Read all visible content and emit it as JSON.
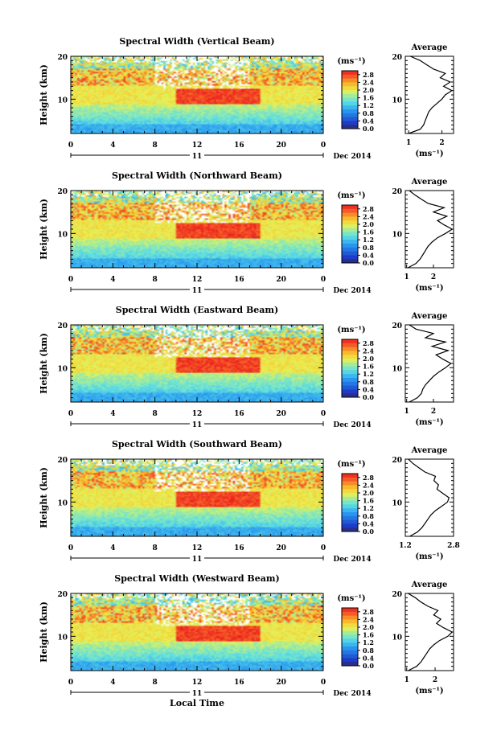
{
  "figure": {
    "xlabel": "Local Time",
    "day_label": "11",
    "month_label": "Dec 2014",
    "colorbar_unit": "(ms⁻¹)",
    "avg_title": "Average",
    "avg_xlabel": "(ms⁻¹)",
    "ylabel": "Height (km)"
  },
  "chart_data": [
    {
      "type": "heatmap",
      "title": "Spectral Width (Vertical Beam)",
      "x_ticks": [
        "0",
        "4",
        "8",
        "12",
        "16",
        "20",
        "0"
      ],
      "y_ticks": [
        "20",
        "10"
      ],
      "xlim": [
        0,
        24
      ],
      "ylim": [
        2,
        20
      ],
      "colorbar_ticks": [
        "2.8",
        "2.4",
        "2.0",
        "1.6",
        "1.2",
        "0.8",
        "0.4",
        "0.0"
      ],
      "colorbar_range": [
        0,
        3.0
      ],
      "profile": {
        "title": "Average",
        "x_ticks": [
          "1",
          "2"
        ],
        "xlim": [
          0.9,
          2.35
        ],
        "heights": [
          2,
          3,
          4,
          5,
          6,
          7,
          8,
          9,
          10,
          11,
          12,
          13,
          14,
          15,
          16,
          17,
          18,
          19,
          20
        ],
        "values": [
          1.0,
          1.35,
          1.45,
          1.5,
          1.55,
          1.6,
          1.7,
          1.85,
          2.0,
          2.1,
          2.3,
          2.05,
          2.25,
          1.95,
          2.1,
          1.75,
          1.55,
          1.35,
          1.05
        ]
      }
    },
    {
      "type": "heatmap",
      "title": "Spectral Width (Northward Beam)",
      "x_ticks": [
        "0",
        "4",
        "8",
        "12",
        "16",
        "20",
        "0"
      ],
      "y_ticks": [
        "20",
        "10"
      ],
      "xlim": [
        0,
        24
      ],
      "ylim": [
        2,
        20
      ],
      "colorbar_ticks": [
        "2.8",
        "2.4",
        "2.0",
        "1.6",
        "1.2",
        "0.8",
        "0.4",
        "0.0"
      ],
      "colorbar_range": [
        0,
        3.0
      ],
      "profile": {
        "title": "Average",
        "x_ticks": [
          "1",
          "2"
        ],
        "xlim": [
          0.95,
          2.75
        ],
        "heights": [
          2,
          3,
          4,
          5,
          6,
          7,
          8,
          9,
          10,
          11,
          12,
          13,
          14,
          15,
          16,
          17,
          18,
          19,
          20
        ],
        "values": [
          1.05,
          1.35,
          1.5,
          1.6,
          1.7,
          1.8,
          1.95,
          2.15,
          2.45,
          2.7,
          2.4,
          2.15,
          2.5,
          2.0,
          2.4,
          1.8,
          1.55,
          1.3,
          1.1
        ]
      }
    },
    {
      "type": "heatmap",
      "title": "Spectral Width (Eastward Beam)",
      "x_ticks": [
        "0",
        "4",
        "8",
        "12",
        "16",
        "20",
        "0"
      ],
      "y_ticks": [
        "20",
        "10"
      ],
      "xlim": [
        0,
        24
      ],
      "ylim": [
        2,
        20
      ],
      "colorbar_ticks": [
        "2.8",
        "2.4",
        "2.0",
        "1.6",
        "1.2",
        "0.8",
        "0.4",
        "0.0"
      ],
      "colorbar_range": [
        0,
        3.0
      ],
      "profile": {
        "title": "Average",
        "x_ticks": [
          "1",
          "2"
        ],
        "xlim": [
          0.95,
          2.75
        ],
        "heights": [
          2,
          3,
          4,
          5,
          6,
          7,
          8,
          9,
          10,
          11,
          12,
          13,
          14,
          15,
          16,
          17,
          18,
          19,
          20
        ],
        "values": [
          1.1,
          1.4,
          1.55,
          1.6,
          1.7,
          1.85,
          2.0,
          2.2,
          2.45,
          2.65,
          2.35,
          2.1,
          2.55,
          1.95,
          2.45,
          1.7,
          2.0,
          1.35,
          1.1
        ]
      }
    },
    {
      "type": "heatmap",
      "title": "Spectral Width (Southward Beam)",
      "x_ticks": [
        "0",
        "4",
        "8",
        "12",
        "16",
        "20",
        "0"
      ],
      "y_ticks": [
        "20",
        "10"
      ],
      "xlim": [
        0,
        24
      ],
      "ylim": [
        2,
        20
      ],
      "colorbar_ticks": [
        "2.8",
        "2.4",
        "2.0",
        "1.6",
        "1.2",
        "0.8",
        "0.4",
        "0.0"
      ],
      "colorbar_range": [
        0,
        3.0
      ],
      "profile": {
        "title": "Average",
        "x_ticks": [
          "1.2",
          "2.8"
        ],
        "xlim": [
          1.2,
          2.8
        ],
        "heights": [
          2,
          3,
          4,
          5,
          6,
          7,
          8,
          9,
          10,
          11,
          12,
          13,
          14,
          15,
          16,
          17,
          18,
          19,
          20
        ],
        "values": [
          1.35,
          1.6,
          1.75,
          1.85,
          1.95,
          2.05,
          2.2,
          2.4,
          2.6,
          2.65,
          2.45,
          2.25,
          2.3,
          2.15,
          2.2,
          1.85,
          1.65,
          1.45,
          1.3
        ]
      }
    },
    {
      "type": "heatmap",
      "title": "Spectral Width (Westward Beam)",
      "x_ticks": [
        "0",
        "4",
        "8",
        "12",
        "16",
        "20",
        "0"
      ],
      "y_ticks": [
        "20",
        "10"
      ],
      "xlim": [
        0,
        24
      ],
      "ylim": [
        2,
        20
      ],
      "colorbar_ticks": [
        "2.8",
        "2.4",
        "2.0",
        "1.6",
        "1.2",
        "0.8",
        "0.4",
        "0.0"
      ],
      "colorbar_range": [
        0,
        3.0
      ],
      "profile": {
        "title": "Average",
        "x_ticks": [
          "1",
          "2"
        ],
        "xlim": [
          0.95,
          2.65
        ],
        "heights": [
          2,
          3,
          4,
          5,
          6,
          7,
          8,
          9,
          10,
          11,
          12,
          13,
          14,
          15,
          16,
          17,
          18,
          19,
          20
        ],
        "values": [
          1.05,
          1.35,
          1.5,
          1.6,
          1.7,
          1.8,
          1.95,
          2.15,
          2.45,
          2.6,
          2.3,
          2.05,
          2.2,
          1.95,
          2.1,
          1.75,
          1.5,
          1.3,
          1.05
        ]
      }
    }
  ]
}
